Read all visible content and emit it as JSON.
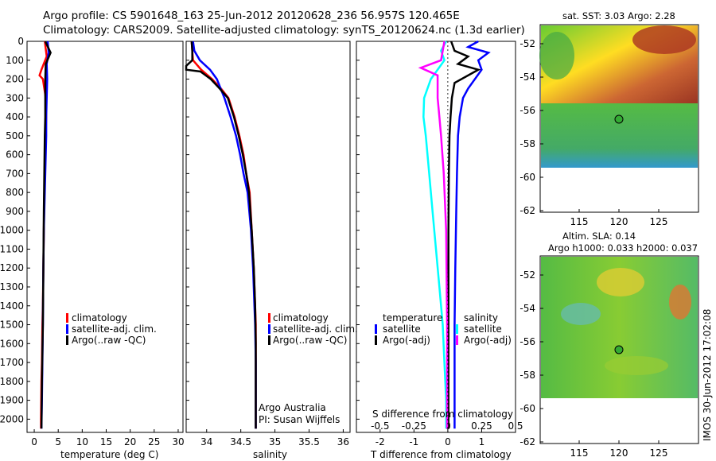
{
  "title_line1": "Argo profile: CS 5901648_163 25-Jun-2012 20120628_236 56.957S 120.465E",
  "title_line2": "Climatology: CARS2009. Satellite-adjusted climatology: synTS_20120624.nc (1.3d earlier)",
  "colors": {
    "climatology": "#ff0000",
    "satellite": "#0000ff",
    "argo": "#000000",
    "sat_salinity": "#00ffff",
    "argo_salinity": "#ff00ff"
  },
  "chart_data": [
    {
      "type": "line",
      "name": "temperature",
      "xlabel": "temperature (deg C)",
      "xlim": [
        -1.5,
        31
      ],
      "xticks": [
        0,
        5,
        10,
        15,
        20,
        25,
        30
      ],
      "ylim": [
        2070,
        0
      ],
      "yticks": [
        0,
        100,
        200,
        300,
        400,
        500,
        600,
        700,
        800,
        900,
        1000,
        1100,
        1200,
        1300,
        1400,
        1500,
        1600,
        1700,
        1800,
        1900,
        2000
      ],
      "series": [
        {
          "key": "climatology",
          "x": [
            2.2,
            2.6,
            1.5,
            1.1,
            1.8,
            2.4,
            2.5,
            2.4,
            2.3,
            2.2,
            2.1,
            2.0,
            1.9,
            1.8,
            1.7,
            1.6,
            1.5,
            1.4,
            1.4
          ],
          "y": [
            0,
            80,
            150,
            180,
            200,
            300,
            400,
            500,
            600,
            700,
            800,
            1000,
            1200,
            1400,
            1500,
            1700,
            1800,
            2000,
            2050
          ]
        },
        {
          "key": "satellite",
          "x": [
            2.8,
            3.0,
            2.6,
            2.7,
            2.6,
            2.5,
            2.5,
            2.4,
            2.3,
            2.2,
            2.1,
            2.0,
            1.9,
            1.8,
            1.7,
            1.6,
            1.5
          ],
          "y": [
            0,
            60,
            120,
            200,
            300,
            400,
            500,
            600,
            700,
            800,
            900,
            1000,
            1200,
            1500,
            1700,
            1900,
            2050
          ]
        },
        {
          "key": "argo",
          "x": [
            2.3,
            3.4,
            2.4,
            2.3,
            2.3,
            2.3,
            2.2,
            2.1,
            2.0,
            1.9,
            1.8,
            1.6,
            1.5
          ],
          "y": [
            0,
            60,
            120,
            200,
            300,
            400,
            500,
            700,
            900,
            1200,
            1500,
            1800,
            2050
          ]
        }
      ],
      "legend": [
        "climatology",
        "satellite-adj. clim.",
        "Argo(..raw -QC)"
      ]
    },
    {
      "type": "line",
      "name": "salinity",
      "xlabel": "salinity",
      "xlim": [
        33.7,
        36.1
      ],
      "xticks": [
        34,
        34.5,
        35,
        35.5,
        36
      ],
      "xtick_labels": [
        "34",
        "34.5",
        "35",
        "35.5",
        "36"
      ],
      "ylim": [
        2070,
        0
      ],
      "series": [
        {
          "key": "climatology",
          "x": [
            33.78,
            33.79,
            33.8,
            33.92,
            34.08,
            34.21,
            34.32,
            34.41,
            34.48,
            34.54,
            34.58,
            34.63,
            34.66,
            34.69,
            34.71,
            34.72,
            34.72,
            34.72,
            34.72,
            34.72
          ],
          "y": [
            0,
            50,
            100,
            150,
            200,
            250,
            300,
            400,
            500,
            600,
            700,
            800,
            1000,
            1200,
            1400,
            1500,
            1700,
            1800,
            2000,
            2050
          ]
        },
        {
          "key": "satellite",
          "x": [
            33.8,
            33.82,
            33.9,
            34.05,
            34.15,
            34.26,
            34.35,
            34.43,
            34.49,
            34.54,
            34.6,
            34.65,
            34.68,
            34.7,
            34.71,
            34.72,
            34.72,
            34.72
          ],
          "y": [
            0,
            50,
            100,
            150,
            200,
            300,
            400,
            500,
            600,
            700,
            800,
            1000,
            1200,
            1400,
            1500,
            1700,
            1900,
            2050
          ]
        },
        {
          "key": "argo",
          "x": [
            33.78,
            33.79,
            33.79,
            33.7,
            33.7,
            33.91,
            34.06,
            34.19,
            34.31,
            34.4,
            34.47,
            34.53,
            34.58,
            34.62,
            34.66,
            34.69,
            34.71,
            34.72,
            34.72,
            34.72
          ],
          "y": [
            0,
            50,
            100,
            130,
            150,
            160,
            200,
            250,
            300,
            400,
            500,
            600,
            700,
            800,
            1000,
            1200,
            1400,
            1600,
            1800,
            2050
          ]
        }
      ],
      "legend": [
        "climatology",
        "satellite-adj. clim.",
        "Argo(..raw -QC)"
      ],
      "annotation": [
        "Argo Australia",
        "PI: Susan Wijffels"
      ]
    },
    {
      "type": "line",
      "name": "difference from climatology",
      "xlabel": "T difference from climatology",
      "xlim": [
        -2.7,
        2.0
      ],
      "xticks": [
        -2,
        -1,
        0,
        1
      ],
      "top_label": "S difference from climatology",
      "top_ticks": [
        "-0.5",
        "-0.25",
        "0",
        "0.25",
        "0.5"
      ],
      "ylim": [
        2070,
        0
      ],
      "series": [
        {
          "key": "satellite",
          "x": [
            0.9,
            0.6,
            1.2,
            0.9,
            1.0,
            0.6,
            0.45,
            0.35,
            0.3,
            0.27,
            0.25,
            0.22,
            0.2,
            0.2,
            0.2,
            0.2
          ],
          "y": [
            0,
            30,
            60,
            100,
            150,
            250,
            300,
            400,
            500,
            700,
            900,
            1200,
            1500,
            1700,
            1900,
            2050
          ]
        },
        {
          "key": "argo",
          "x": [
            0.1,
            0.2,
            0.6,
            0.3,
            0.9,
            0.2,
            0.12,
            0.08,
            0.05,
            0.03,
            0.02,
            0.02,
            0.02,
            0.02
          ],
          "y": [
            0,
            50,
            80,
            120,
            150,
            220,
            300,
            400,
            500,
            700,
            1000,
            1400,
            1800,
            2050
          ]
        },
        {
          "key": "sat_salinity",
          "x": [
            -0.05,
            -0.2,
            -0.1,
            -0.5,
            -0.7,
            -0.72,
            -0.65,
            -0.55,
            -0.45,
            -0.35,
            -0.25,
            -0.15,
            -0.1,
            -0.05,
            -0.05
          ],
          "y": [
            0,
            50,
            100,
            200,
            300,
            400,
            500,
            700,
            900,
            1100,
            1300,
            1500,
            1700,
            1900,
            2050
          ]
        },
        {
          "key": "argo_salinity",
          "x": [
            -0.1,
            -0.15,
            -0.2,
            -0.8,
            -0.3,
            -0.3,
            -0.25,
            -0.2,
            -0.12,
            -0.05,
            -0.02,
            -0.02
          ],
          "y": [
            0,
            50,
            100,
            140,
            180,
            300,
            400,
            500,
            700,
            1000,
            1500,
            2050
          ]
        }
      ],
      "legend_headers": [
        "temperature",
        "salinity"
      ],
      "legend_left": [
        "satellite",
        "Argo(-adj)"
      ],
      "legend_right": [
        "satellite",
        "Argo(-adj)"
      ]
    }
  ],
  "maps": [
    {
      "name": "sst-map",
      "title": "sat. SST: 3.03 Argo: 2.28"
    },
    {
      "name": "sla-map",
      "title_line1": "Altim. SLA: 0.14",
      "title_line2": "Argo h1000: 0.033 h2000: 0.037"
    }
  ],
  "map_axes": {
    "yticks": [
      "-52",
      "-54",
      "-56",
      "-58",
      "-60",
      "-62"
    ],
    "xticks": [
      "115",
      "120",
      "125"
    ]
  },
  "footer_vertical": "IMOS 30-Jun-2012 17:02:08"
}
